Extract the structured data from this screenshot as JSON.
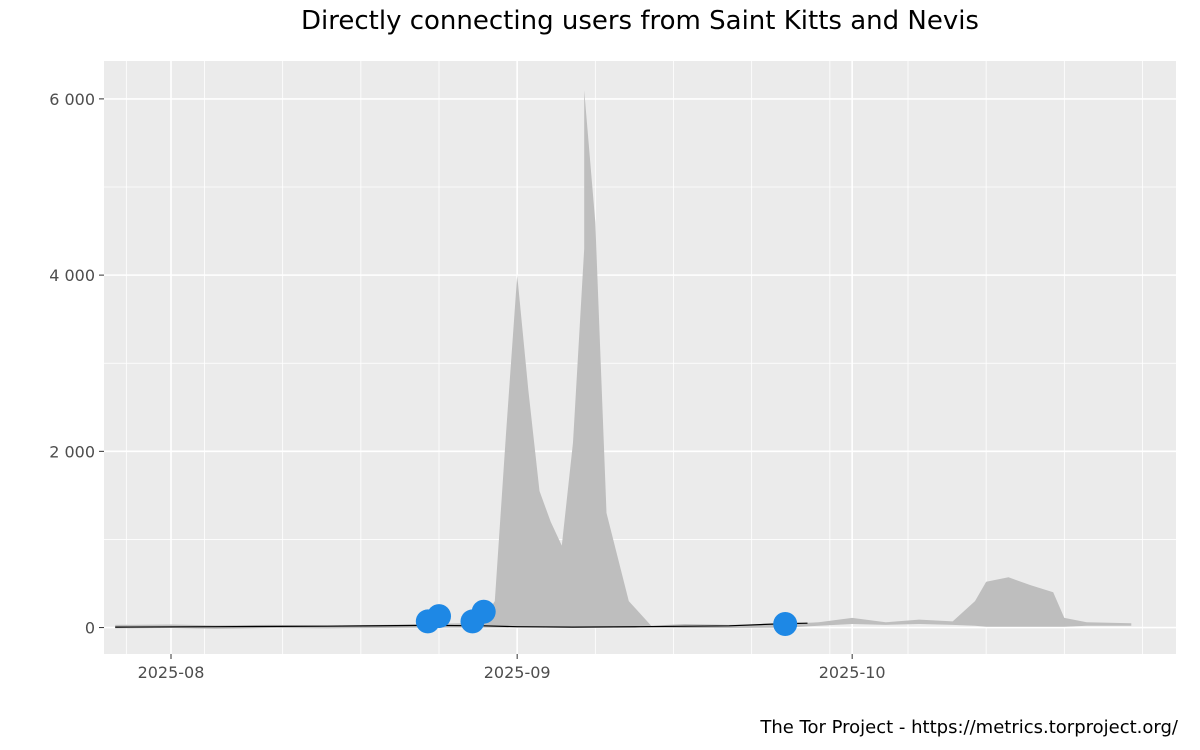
{
  "chart_data": {
    "type": "area",
    "title": "Directly connecting users from Saint Kitts and Nevis",
    "credit": "The Tor Project - https://metrics.torproject.org/",
    "xlim": [
      "2025-07-26",
      "2025-10-30"
    ],
    "ylim": [
      -300,
      6430
    ],
    "y_ticks": [
      {
        "value": 0,
        "label": "0"
      },
      {
        "value": 2000,
        "label": "2 000"
      },
      {
        "value": 4000,
        "label": "4 000"
      },
      {
        "value": 6000,
        "label": "6 000"
      }
    ],
    "x_ticks": [
      {
        "date": "2025-08-01",
        "label": "2025-08"
      },
      {
        "date": "2025-09-01",
        "label": "2025-09"
      },
      {
        "date": "2025-10-01",
        "label": "2025-10"
      }
    ],
    "grid": true,
    "colors": {
      "panel": "#ebebeb",
      "grid": "#ffffff",
      "range_fill": "#bebebe",
      "line": "#000000",
      "event": "#1e88e5"
    },
    "series": [
      {
        "range": [
          {
            "date": "2025-07-27",
            "low": -10,
            "high": 30
          },
          {
            "date": "2025-08-01",
            "low": -5,
            "high": 35
          },
          {
            "date": "2025-08-05",
            "low": -15,
            "high": 25
          },
          {
            "date": "2025-08-10",
            "low": -5,
            "high": 30
          },
          {
            "date": "2025-08-15",
            "low": -10,
            "high": 25
          },
          {
            "date": "2025-08-20",
            "low": -5,
            "high": 30
          },
          {
            "date": "2025-08-24",
            "low": 0,
            "high": 40
          },
          {
            "date": "2025-08-27",
            "low": 0,
            "high": 50
          },
          {
            "date": "2025-08-29",
            "low": 0,
            "high": 100
          },
          {
            "date": "2025-08-30",
            "low": 0,
            "high": 300
          },
          {
            "date": "2025-08-31",
            "low": 0,
            "high": 2200
          },
          {
            "date": "2025-09-01",
            "low": 0,
            "high": 4000
          },
          {
            "date": "2025-09-02",
            "low": 0,
            "high": 2700
          },
          {
            "date": "2025-09-03",
            "low": 0,
            "high": 1550
          },
          {
            "date": "2025-09-04",
            "low": 0,
            "high": 1200
          },
          {
            "date": "2025-09-05",
            "low": 0,
            "high": 930
          },
          {
            "date": "2025-09-06",
            "low": 0,
            "high": 2100
          },
          {
            "date": "2025-09-07",
            "low": 0,
            "high": 4300
          },
          {
            "date": "2025-09-07",
            "low": 0,
            "high": 6100
          },
          {
            "date": "2025-09-08",
            "low": 0,
            "high": 4600
          },
          {
            "date": "2025-09-09",
            "low": 0,
            "high": 1300
          },
          {
            "date": "2025-09-11",
            "low": 0,
            "high": 300
          },
          {
            "date": "2025-09-13",
            "low": 0,
            "high": 20
          },
          {
            "date": "2025-09-16",
            "low": -5,
            "high": 40
          },
          {
            "date": "2025-09-20",
            "low": -5,
            "high": 30
          },
          {
            "date": "2025-09-25",
            "low": 0,
            "high": 40
          },
          {
            "date": "2025-09-28",
            "low": 20,
            "high": 60
          },
          {
            "date": "2025-10-01",
            "low": 40,
            "high": 110
          },
          {
            "date": "2025-10-04",
            "low": 30,
            "high": 60
          },
          {
            "date": "2025-10-07",
            "low": 40,
            "high": 90
          },
          {
            "date": "2025-10-10",
            "low": 30,
            "high": 70
          },
          {
            "date": "2025-10-12",
            "low": 20,
            "high": 300
          },
          {
            "date": "2025-10-13",
            "low": 10,
            "high": 520
          },
          {
            "date": "2025-10-15",
            "low": 10,
            "high": 570
          },
          {
            "date": "2025-10-17",
            "low": 10,
            "high": 480
          },
          {
            "date": "2025-10-19",
            "low": 10,
            "high": 400
          },
          {
            "date": "2025-10-20",
            "low": 10,
            "high": 110
          },
          {
            "date": "2025-10-22",
            "low": 20,
            "high": 60
          },
          {
            "date": "2025-10-26",
            "low": 20,
            "high": 50
          }
        ],
        "line": [
          {
            "date": "2025-07-27",
            "value": 5
          },
          {
            "date": "2025-08-05",
            "value": 10
          },
          {
            "date": "2025-08-15",
            "value": 15
          },
          {
            "date": "2025-08-24",
            "value": 25
          },
          {
            "date": "2025-08-29",
            "value": 20
          },
          {
            "date": "2025-09-01",
            "value": 10
          },
          {
            "date": "2025-09-06",
            "value": 5
          },
          {
            "date": "2025-09-12",
            "value": 10
          },
          {
            "date": "2025-09-20",
            "value": 20
          },
          {
            "date": "2025-09-25",
            "value": 45
          },
          {
            "date": "2025-09-27",
            "value": 50
          }
        ],
        "events": [
          {
            "date": "2025-08-24",
            "value": 70
          },
          {
            "date": "2025-08-25",
            "value": 130
          },
          {
            "date": "2025-08-28",
            "value": 70
          },
          {
            "date": "2025-08-29",
            "value": 180
          },
          {
            "date": "2025-09-25",
            "value": 40
          }
        ]
      }
    ]
  }
}
